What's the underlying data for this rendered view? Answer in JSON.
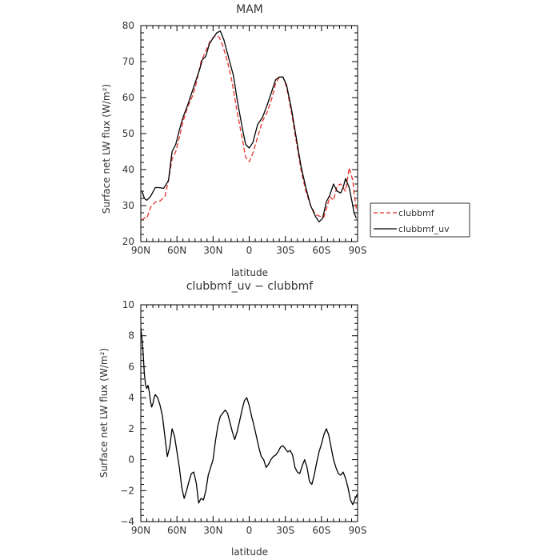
{
  "chart_data": [
    {
      "type": "line",
      "title": "MAM",
      "xlabel": "latitude",
      "ylabel": "Surface net LW flux (W/m²)",
      "xlim": [
        90,
        -90
      ],
      "ylim": [
        20,
        80
      ],
      "x_tick_values": [
        90,
        60,
        30,
        0,
        -30,
        -60,
        -90
      ],
      "x_tick_labels": [
        "90N",
        "60N",
        "30N",
        "0",
        "30S",
        "60S",
        "90S"
      ],
      "y_tick_values": [
        20,
        30,
        40,
        50,
        60,
        70,
        80
      ],
      "y_tick_labels": [
        "20",
        "30",
        "40",
        "50",
        "60",
        "70",
        "80"
      ],
      "legend": "right",
      "series": [
        {
          "name": "clubbmf",
          "color": "#e8302b",
          "dash": "dashed",
          "x": [
            89,
            87,
            85,
            82,
            78,
            74,
            70,
            67,
            64,
            61,
            58,
            55,
            51,
            47,
            44,
            40,
            36,
            32,
            28,
            25,
            22,
            18,
            14,
            10,
            6,
            3,
            0,
            -3,
            -7,
            -11,
            -15,
            -19,
            -22,
            -25,
            -28,
            -31,
            -35,
            -39,
            -43,
            -47,
            -51,
            -55,
            -59,
            -62,
            -64,
            -67,
            -70,
            -73,
            -76,
            -80,
            -83,
            -86,
            -87,
            -89
          ],
          "y": [
            26,
            26.6,
            26.4,
            29.5,
            31,
            31.3,
            32.5,
            37,
            43,
            45,
            49,
            53.3,
            57.5,
            60.5,
            64,
            70,
            73,
            76,
            77.2,
            76.8,
            74.5,
            70,
            64,
            56,
            49,
            43.5,
            42.2,
            44.5,
            49,
            53.5,
            56,
            60,
            64,
            65.7,
            65.7,
            63,
            56,
            48,
            40,
            34,
            30,
            27.5,
            27,
            26.8,
            29,
            32.5,
            31.5,
            35.5,
            36,
            34,
            40.5,
            37,
            33.5,
            29
          ]
        },
        {
          "name": "clubbmf_uv",
          "color": "#000000",
          "dash": "solid",
          "x": [
            89,
            87,
            85,
            82,
            78,
            75,
            71,
            67,
            64,
            61,
            58,
            55,
            51,
            47,
            44,
            41,
            39,
            36,
            33,
            30,
            27,
            24,
            21,
            17,
            13,
            10,
            6,
            3,
            0,
            -3,
            -7,
            -11,
            -15,
            -19,
            -22,
            -25,
            -28,
            -31,
            -35,
            -39,
            -43,
            -47,
            -51,
            -55,
            -58,
            -61,
            -64,
            -67,
            -70,
            -73,
            -76,
            -78,
            -80,
            -83,
            -86,
            -87,
            -89
          ],
          "y": [
            34,
            32,
            31.5,
            32.5,
            35,
            35,
            34.8,
            37,
            45,
            47,
            51,
            54.5,
            58,
            62,
            65,
            68,
            70.5,
            71.5,
            75,
            76.5,
            78,
            78.5,
            76,
            71,
            66,
            59.5,
            52,
            47,
            46,
            47.5,
            52.5,
            54.5,
            58,
            62,
            65,
            65.7,
            65.7,
            63.5,
            57,
            49,
            41,
            35,
            30,
            27,
            25.5,
            26.5,
            31,
            33,
            36,
            34,
            33.5,
            35,
            37.5,
            35,
            30,
            28,
            26.5
          ]
        }
      ]
    },
    {
      "type": "line",
      "title": "clubbmf_uv − clubbmf",
      "xlabel": "latitude",
      "ylabel": "Surface net LW flux (W/m²)",
      "xlim": [
        90,
        -90
      ],
      "ylim": [
        -4,
        10
      ],
      "x_tick_values": [
        90,
        60,
        30,
        0,
        -30,
        -60,
        -90
      ],
      "x_tick_labels": [
        "90N",
        "60N",
        "30N",
        "0",
        "30S",
        "60S",
        "90S"
      ],
      "y_tick_values": [
        -4,
        -2,
        0,
        2,
        4,
        6,
        8,
        10
      ],
      "y_tick_labels": [
        "−4",
        "−2",
        "0",
        "2",
        "4",
        "6",
        "8",
        "10"
      ],
      "series": [
        {
          "color": "#000000",
          "dash": "solid",
          "x": [
            90,
            89,
            88,
            87,
            86,
            85,
            84,
            83,
            82,
            81,
            80,
            79,
            78,
            76,
            74,
            72,
            70,
            68,
            66,
            64,
            62,
            60,
            58,
            56,
            54,
            52,
            50,
            48,
            46,
            44,
            42,
            40,
            38,
            36,
            34,
            32,
            30,
            28,
            26,
            24,
            22,
            20,
            18,
            16,
            14,
            12,
            10,
            8,
            6,
            4,
            2,
            0,
            -2,
            -4,
            -6,
            -8,
            -10,
            -12,
            -14,
            -16,
            -18,
            -20,
            -22,
            -24,
            -26,
            -28,
            -30,
            -32,
            -34,
            -36,
            -38,
            -40,
            -42,
            -44,
            -46,
            -48,
            -50,
            -52,
            -54,
            -56,
            -58,
            -60,
            -62,
            -64,
            -66,
            -68,
            -70,
            -72,
            -74,
            -76,
            -78,
            -80,
            -82,
            -84,
            -86,
            -88,
            -90
          ],
          "y": [
            8.5,
            7.8,
            6.8,
            5.5,
            4.8,
            4.6,
            4.8,
            4.4,
            3.8,
            3.4,
            3.6,
            4.0,
            4.2,
            4.0,
            3.5,
            2.8,
            1.5,
            0.2,
            0.8,
            2.0,
            1.5,
            0.5,
            -0.5,
            -1.8,
            -2.5,
            -2.0,
            -1.4,
            -0.9,
            -0.8,
            -1.5,
            -2.8,
            -2.5,
            -2.6,
            -2.0,
            -1.0,
            -0.5,
            0.0,
            1.2,
            2.2,
            2.8,
            3.0,
            3.2,
            3.0,
            2.4,
            1.8,
            1.3,
            1.8,
            2.5,
            3.2,
            3.8,
            4.0,
            3.5,
            2.8,
            2.2,
            1.5,
            0.8,
            0.2,
            0.0,
            -0.5,
            -0.3,
            0.0,
            0.2,
            0.3,
            0.5,
            0.8,
            0.9,
            0.7,
            0.5,
            0.6,
            0.3,
            -0.5,
            -0.8,
            -0.9,
            -0.4,
            0.0,
            -0.5,
            -1.4,
            -1.6,
            -1.0,
            -0.2,
            0.5,
            1.0,
            1.6,
            2.0,
            1.6,
            0.8,
            0.0,
            -0.5,
            -0.9,
            -1.0,
            -0.8,
            -1.2,
            -1.8,
            -2.6,
            -2.9,
            -2.5,
            -2.2
          ]
        }
      ]
    }
  ]
}
